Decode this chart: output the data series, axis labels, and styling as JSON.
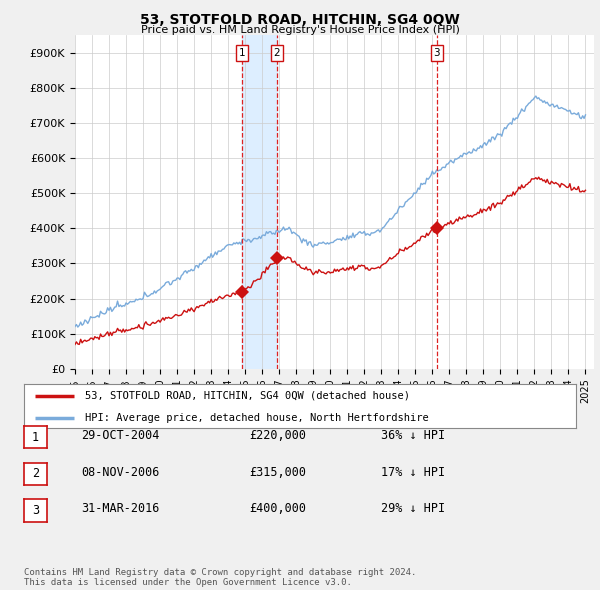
{
  "title": "53, STOTFOLD ROAD, HITCHIN, SG4 0QW",
  "subtitle": "Price paid vs. HM Land Registry's House Price Index (HPI)",
  "ylabel_ticks": [
    "£0",
    "£100K",
    "£200K",
    "£300K",
    "£400K",
    "£500K",
    "£600K",
    "£700K",
    "£800K",
    "£900K"
  ],
  "ytick_values": [
    0,
    100000,
    200000,
    300000,
    400000,
    500000,
    600000,
    700000,
    800000,
    900000
  ],
  "ylim": [
    0,
    950000
  ],
  "xlim_start": 1995.0,
  "xlim_end": 2025.5,
  "xtick_years": [
    1995,
    1996,
    1997,
    1998,
    1999,
    2000,
    2001,
    2002,
    2003,
    2004,
    2005,
    2006,
    2007,
    2008,
    2009,
    2010,
    2011,
    2012,
    2013,
    2014,
    2015,
    2016,
    2017,
    2018,
    2019,
    2020,
    2021,
    2022,
    2023,
    2024,
    2025
  ],
  "sale_dates": [
    2004.83,
    2006.85,
    2016.25
  ],
  "sale_prices": [
    220000,
    315000,
    400000
  ],
  "sale_labels": [
    "1",
    "2",
    "3"
  ],
  "vline_color": "#dd2222",
  "red_line_color": "#cc1111",
  "blue_line_color": "#7aabdb",
  "shade_color": "#ddeeff",
  "background_color": "#f0f0f0",
  "plot_bg_color": "#ffffff",
  "grid_color": "#cccccc",
  "legend_entry1": "53, STOTFOLD ROAD, HITCHIN, SG4 0QW (detached house)",
  "legend_entry2": "HPI: Average price, detached house, North Hertfordshire",
  "table_rows": [
    {
      "label": "1",
      "date": "29-OCT-2004",
      "price": "£220,000",
      "hpi": "36% ↓ HPI"
    },
    {
      "label": "2",
      "date": "08-NOV-2006",
      "price": "£315,000",
      "hpi": "17% ↓ HPI"
    },
    {
      "label": "3",
      "date": "31-MAR-2016",
      "price": "£400,000",
      "hpi": "29% ↓ HPI"
    }
  ],
  "footer": "Contains HM Land Registry data © Crown copyright and database right 2024.\nThis data is licensed under the Open Government Licence v3.0."
}
